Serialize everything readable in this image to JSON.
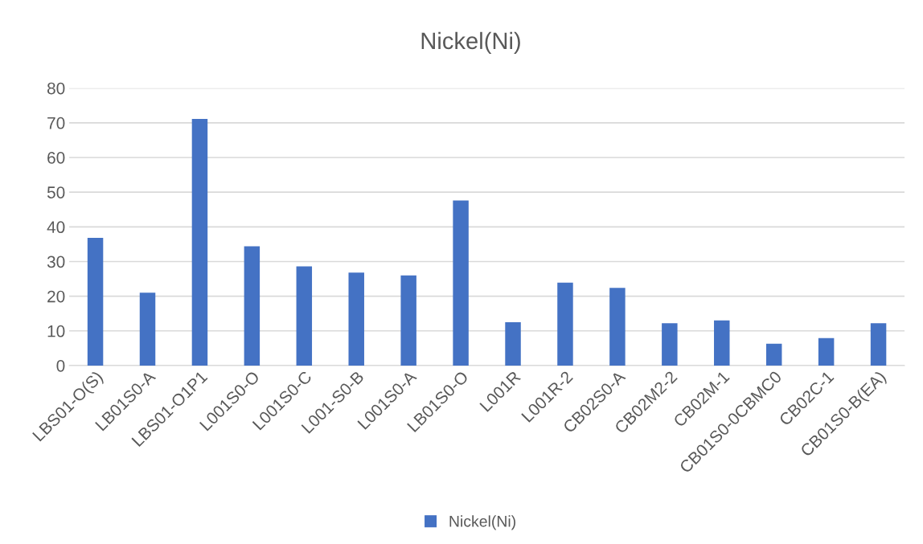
{
  "chart_data": {
    "type": "bar",
    "title": "Nickel(Ni)",
    "categories": [
      "LBS01-O(S)",
      "LB01S0-A",
      "LBS01-O1P1",
      "L001S0-O",
      "L001S0-C",
      "L001-S0-B",
      "L001S0-A",
      "LB01S0-O",
      "L001R",
      "L001R-2",
      "CB02S0-A",
      "CB02M2-2",
      "CB02M-1",
      "CB01S0-0CBMC0",
      "CB02C-1",
      "CB01S0-B(EA)"
    ],
    "series": [
      {
        "name": "Nickel(Ni)",
        "color": "#4472c4",
        "values": [
          36.8,
          21.0,
          71.1,
          34.4,
          28.6,
          26.8,
          26.0,
          47.6,
          12.5,
          23.9,
          22.4,
          12.2,
          13.0,
          6.3,
          7.9,
          12.2
        ]
      }
    ],
    "ylim": [
      0,
      80
    ],
    "yticks": [
      0,
      10,
      20,
      30,
      40,
      50,
      60,
      70,
      80
    ],
    "grid": "y",
    "legend": "bottom"
  }
}
